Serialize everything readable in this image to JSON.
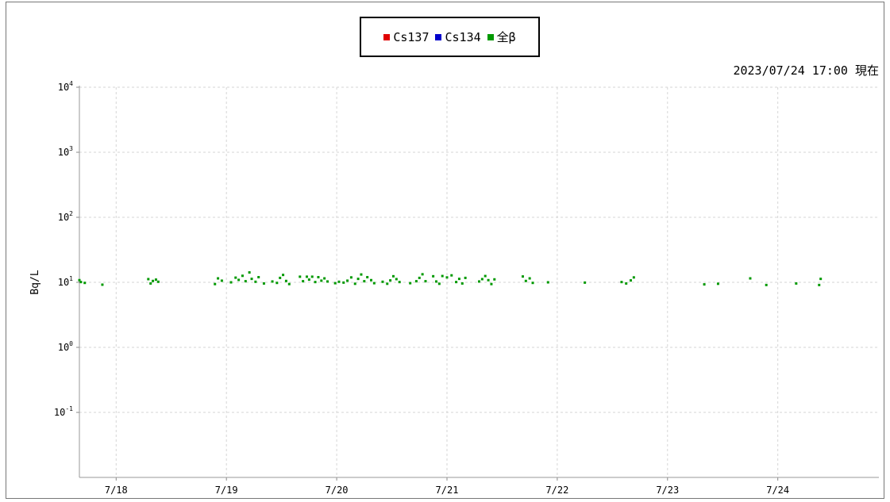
{
  "chart_data": {
    "type": "scatter",
    "title": "",
    "timestamp": "2023/07/24 17:00 現在",
    "ylabel": "Bq/L",
    "xlabel": "",
    "yscale": "log",
    "ylim": [
      0.01,
      10000
    ],
    "y_ticks": [
      {
        "value": 0.1,
        "base": "10",
        "exp": "-1"
      },
      {
        "value": 1,
        "base": "10",
        "exp": "0"
      },
      {
        "value": 10,
        "base": "10",
        "exp": "1"
      },
      {
        "value": 100,
        "base": "10",
        "exp": "2"
      },
      {
        "value": 1000,
        "base": "10",
        "exp": "3"
      },
      {
        "value": 10000,
        "base": "10",
        "exp": "4"
      }
    ],
    "xlim": [
      "2023-07-17 16:00",
      "2023-07-24 22:00"
    ],
    "x_ticks": [
      {
        "value": "2023-07-18 00:00",
        "label": "7/18"
      },
      {
        "value": "2023-07-19 00:00",
        "label": "7/19"
      },
      {
        "value": "2023-07-20 00:00",
        "label": "7/20"
      },
      {
        "value": "2023-07-21 00:00",
        "label": "7/21"
      },
      {
        "value": "2023-07-22 00:00",
        "label": "7/22"
      },
      {
        "value": "2023-07-23 00:00",
        "label": "7/23"
      },
      {
        "value": "2023-07-24 00:00",
        "label": "7/24"
      }
    ],
    "grid": true,
    "legend_position": "top-center",
    "legend": [
      {
        "name": "Cs137",
        "color": "#e00000"
      },
      {
        "name": "Cs134",
        "color": "#0000cc"
      },
      {
        "name": "全β",
        "color": "#009900"
      }
    ],
    "series": [
      {
        "name": "Cs137",
        "color": "#e00000",
        "points": []
      },
      {
        "name": "Cs134",
        "color": "#0000cc",
        "points": []
      },
      {
        "name": "全β",
        "color": "#009900",
        "points": [
          [
            "2023-07-17 16:00",
            10.8
          ],
          [
            "2023-07-17 16:20",
            10.1
          ],
          [
            "2023-07-17 17:10",
            9.8
          ],
          [
            "2023-07-17 21:00",
            9.2
          ],
          [
            "2023-07-18 07:00",
            11.2
          ],
          [
            "2023-07-18 07:30",
            9.6
          ],
          [
            "2023-07-18 08:00",
            10.5
          ],
          [
            "2023-07-18 08:40",
            11.0
          ],
          [
            "2023-07-18 09:10",
            10.2
          ],
          [
            "2023-07-18 21:30",
            9.4
          ],
          [
            "2023-07-18 22:10",
            11.5
          ],
          [
            "2023-07-18 23:00",
            10.6
          ],
          [
            "2023-07-19 01:00",
            10.0
          ],
          [
            "2023-07-19 02:00",
            11.8
          ],
          [
            "2023-07-19 02:40",
            10.9
          ],
          [
            "2023-07-19 03:30",
            12.6
          ],
          [
            "2023-07-19 04:10",
            10.4
          ],
          [
            "2023-07-19 05:00",
            14.2
          ],
          [
            "2023-07-19 05:30",
            11.3
          ],
          [
            "2023-07-19 06:20",
            10.2
          ],
          [
            "2023-07-19 07:00",
            12.0
          ],
          [
            "2023-07-19 08:10",
            9.6
          ],
          [
            "2023-07-19 10:00",
            10.3
          ],
          [
            "2023-07-19 11:00",
            9.8
          ],
          [
            "2023-07-19 11:40",
            11.7
          ],
          [
            "2023-07-19 12:20",
            13.0
          ],
          [
            "2023-07-19 13:00",
            10.5
          ],
          [
            "2023-07-19 13:40",
            9.4
          ],
          [
            "2023-07-19 16:00",
            12.2
          ],
          [
            "2023-07-19 16:40",
            10.4
          ],
          [
            "2023-07-19 17:30",
            12.2
          ],
          [
            "2023-07-19 18:00",
            11.0
          ],
          [
            "2023-07-19 18:40",
            12.2
          ],
          [
            "2023-07-19 19:20",
            10.1
          ],
          [
            "2023-07-19 20:00",
            12.0
          ],
          [
            "2023-07-19 20:40",
            10.6
          ],
          [
            "2023-07-19 21:20",
            11.5
          ],
          [
            "2023-07-19 22:00",
            10.3
          ],
          [
            "2023-07-19 23:40",
            9.7
          ],
          [
            "2023-07-20 00:30",
            10.2
          ],
          [
            "2023-07-20 01:30",
            9.9
          ],
          [
            "2023-07-20 02:20",
            10.6
          ],
          [
            "2023-07-20 03:10",
            11.9
          ],
          [
            "2023-07-20 04:00",
            9.5
          ],
          [
            "2023-07-20 04:40",
            11.3
          ],
          [
            "2023-07-20 05:20",
            13.2
          ],
          [
            "2023-07-20 06:00",
            10.4
          ],
          [
            "2023-07-20 06:40",
            12.0
          ],
          [
            "2023-07-20 07:30",
            10.8
          ],
          [
            "2023-07-20 08:10",
            9.7
          ],
          [
            "2023-07-20 10:00",
            10.2
          ],
          [
            "2023-07-20 11:00",
            9.5
          ],
          [
            "2023-07-20 11:40",
            10.7
          ],
          [
            "2023-07-20 12:20",
            12.4
          ],
          [
            "2023-07-20 13:00",
            11.2
          ],
          [
            "2023-07-20 13:40",
            10.1
          ],
          [
            "2023-07-20 16:00",
            9.7
          ],
          [
            "2023-07-20 17:20",
            10.4
          ],
          [
            "2023-07-20 18:00",
            11.7
          ],
          [
            "2023-07-20 18:40",
            13.3
          ],
          [
            "2023-07-20 19:20",
            10.4
          ],
          [
            "2023-07-20 21:00",
            12.4
          ],
          [
            "2023-07-20 21:40",
            10.3
          ],
          [
            "2023-07-20 22:20",
            9.5
          ],
          [
            "2023-07-20 23:00",
            12.5
          ],
          [
            "2023-07-21 00:00",
            11.9
          ],
          [
            "2023-07-21 01:00",
            12.8
          ],
          [
            "2023-07-21 02:00",
            10.1
          ],
          [
            "2023-07-21 02:40",
            11.3
          ],
          [
            "2023-07-21 03:20",
            9.6
          ],
          [
            "2023-07-21 04:00",
            11.7
          ],
          [
            "2023-07-21 07:00",
            10.3
          ],
          [
            "2023-07-21 07:40",
            11.2
          ],
          [
            "2023-07-21 08:20",
            12.5
          ],
          [
            "2023-07-21 09:00",
            10.8
          ],
          [
            "2023-07-21 09:40",
            9.4
          ],
          [
            "2023-07-21 10:20",
            11.1
          ],
          [
            "2023-07-21 16:30",
            12.3
          ],
          [
            "2023-07-21 17:10",
            10.5
          ],
          [
            "2023-07-21 18:00",
            11.5
          ],
          [
            "2023-07-21 18:40",
            9.8
          ],
          [
            "2023-07-21 22:00",
            10.0
          ],
          [
            "2023-07-22 06:00",
            9.9
          ],
          [
            "2023-07-22 14:00",
            10.1
          ],
          [
            "2023-07-22 15:00",
            9.6
          ],
          [
            "2023-07-22 16:00",
            10.7
          ],
          [
            "2023-07-22 16:40",
            11.9
          ],
          [
            "2023-07-23 08:00",
            9.3
          ],
          [
            "2023-07-23 11:00",
            9.5
          ],
          [
            "2023-07-23 18:00",
            11.5
          ],
          [
            "2023-07-23 21:30",
            9.1
          ],
          [
            "2023-07-24 04:00",
            9.6
          ],
          [
            "2023-07-24 09:00",
            9.1
          ],
          [
            "2023-07-24 09:20",
            11.3
          ]
        ]
      }
    ]
  }
}
